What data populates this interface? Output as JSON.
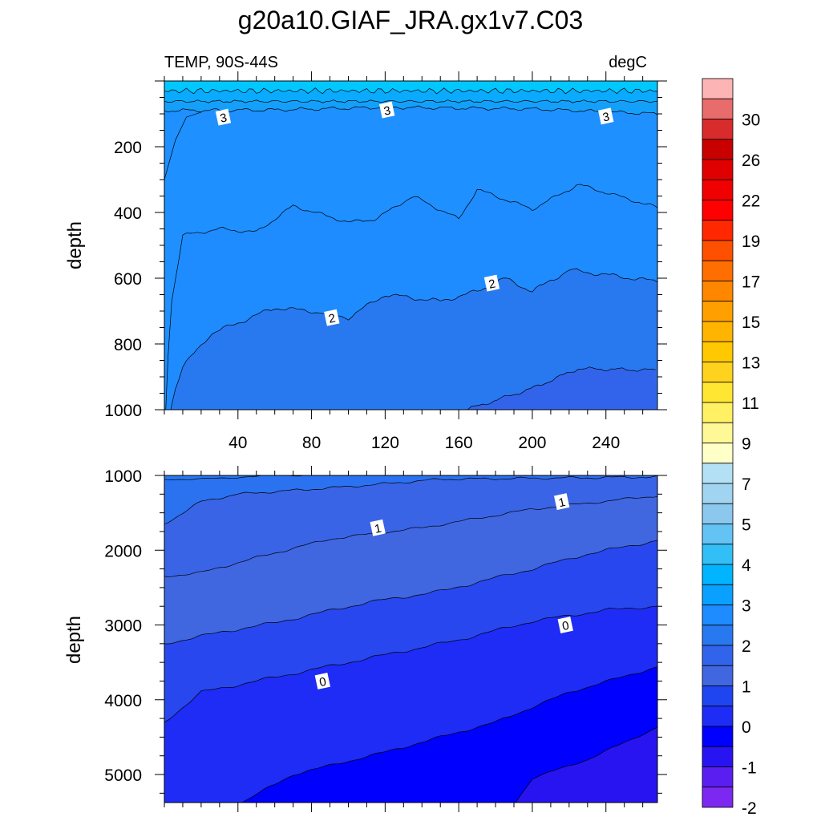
{
  "title": "g20a10.GIAF_JRA.gx1v7.C03",
  "chart_data": {
    "type": "contour",
    "variable": "TEMP",
    "region": "90S-44S",
    "units": "degC",
    "x_ticks": [
      "40",
      "80",
      "120",
      "160",
      "200",
      "240"
    ],
    "x_tick_values": [
      40,
      80,
      120,
      160,
      200,
      240
    ],
    "xlim": [
      0,
      268
    ],
    "upper_panel": {
      "left_label": "TEMP, 90S-44S",
      "right_label": "degC",
      "ylabel": "depth",
      "ylim": [
        1000,
        0
      ],
      "y_ticks": [
        "200",
        "400",
        "600",
        "800",
        "1000"
      ],
      "y_tick_values": [
        200,
        400,
        600,
        800,
        1000
      ],
      "contour_labels": [
        {
          "text": "3",
          "x": 32,
          "depth": 110
        },
        {
          "text": "3",
          "x": 121,
          "depth": 88
        },
        {
          "text": "3",
          "x": 240,
          "depth": 107
        },
        {
          "text": "2",
          "x": 91,
          "depth": 720
        },
        {
          "text": "2",
          "x": 178,
          "depth": 615
        }
      ]
    },
    "lower_panel": {
      "ylabel": "depth",
      "ylim": [
        5375,
        1000
      ],
      "y_ticks": [
        "1000",
        "2000",
        "3000",
        "4000",
        "5000"
      ],
      "y_tick_values": [
        1000,
        2000,
        3000,
        4000,
        5000
      ],
      "contour_labels": [
        {
          "text": "1",
          "x": 116,
          "depth": 1700
        },
        {
          "text": "1",
          "x": 216,
          "depth": 1350
        },
        {
          "text": "0",
          "x": 86,
          "depth": 3750
        },
        {
          "text": "0",
          "x": 218,
          "depth": 3000
        }
      ]
    },
    "colorbar": {
      "labels": [
        "30",
        "26",
        "22",
        "19",
        "17",
        "15",
        "13",
        "11",
        "9",
        "7",
        "5",
        "4",
        "3",
        "2",
        "1",
        "0",
        "-1",
        "-2"
      ],
      "colors": [
        "#fdb4b4",
        "#e86c6c",
        "#d82c2c",
        "#c80000",
        "#e00000",
        "#f00000",
        "#ff0000",
        "#ff2800",
        "#ff5000",
        "#ff6e00",
        "#ff8700",
        "#ffa000",
        "#ffb400",
        "#ffc800",
        "#ffd21e",
        "#ffe632",
        "#fff064",
        "#fff896",
        "#ffffc8",
        "#b4e0f5",
        "#a0d4f0",
        "#8cc8ee",
        "#64c3f5",
        "#32bff5",
        "#00b4ff",
        "#0aa0ff",
        "#1e8cff",
        "#2878f0",
        "#3264eb",
        "#4066e0",
        "#1f45f0",
        "#1e2cf5",
        "#0000ff",
        "#2814f0",
        "#5a1ef0",
        "#7d28f0"
      ]
    }
  }
}
